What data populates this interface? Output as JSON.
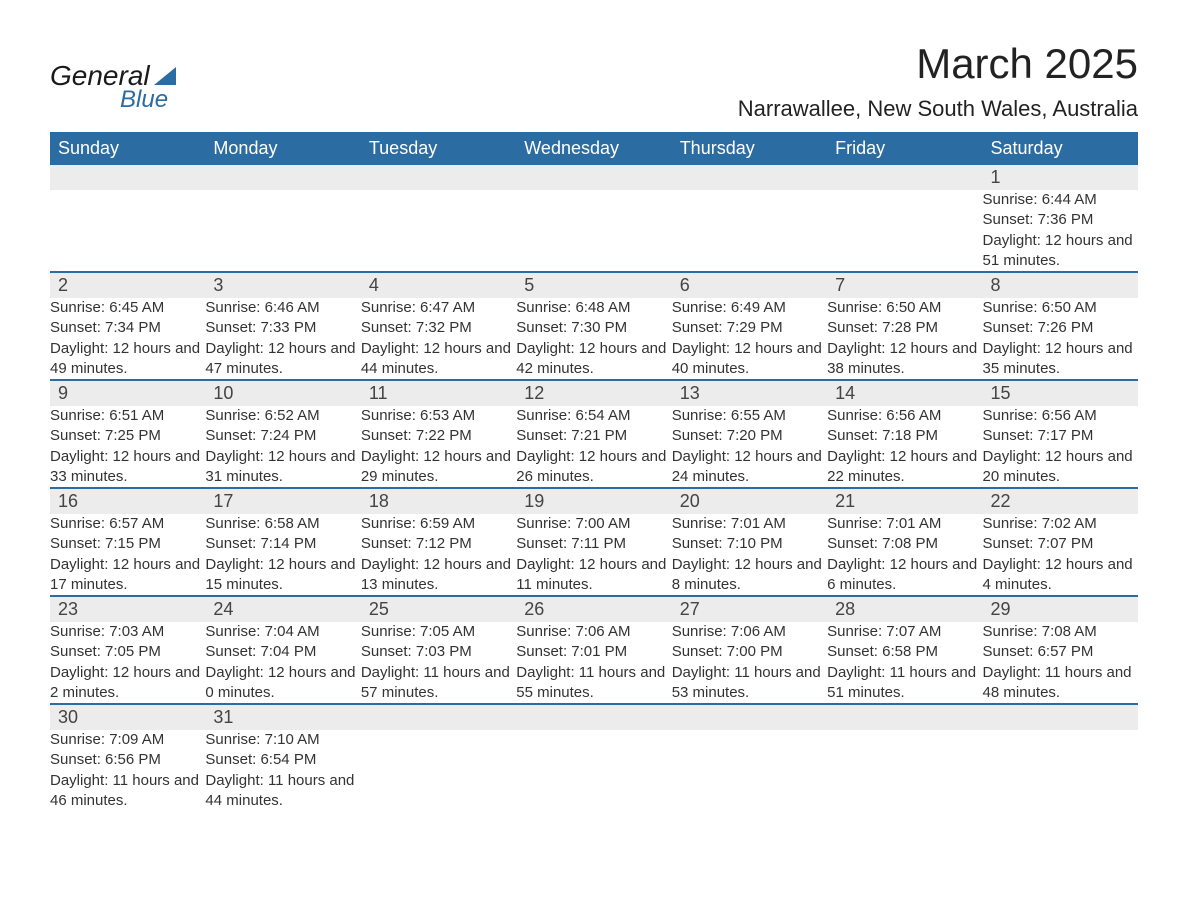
{
  "brand": {
    "part1": "General",
    "part2": "Blue"
  },
  "title": "March 2025",
  "subtitle": "Narrawallee, New South Wales, Australia",
  "colors": {
    "header_bg": "#2b6ca3",
    "header_text": "#ffffff",
    "daynum_bg": "#ececec",
    "row_border": "#2b6ca3",
    "body_bg": "#ffffff",
    "text": "#333333"
  },
  "weekdays": [
    "Sunday",
    "Monday",
    "Tuesday",
    "Wednesday",
    "Thursday",
    "Friday",
    "Saturday"
  ],
  "weeks": [
    [
      null,
      null,
      null,
      null,
      null,
      null,
      {
        "d": "1",
        "sr": "Sunrise: 6:44 AM",
        "ss": "Sunset: 7:36 PM",
        "dl": "Daylight: 12 hours and 51 minutes."
      }
    ],
    [
      {
        "d": "2",
        "sr": "Sunrise: 6:45 AM",
        "ss": "Sunset: 7:34 PM",
        "dl": "Daylight: 12 hours and 49 minutes."
      },
      {
        "d": "3",
        "sr": "Sunrise: 6:46 AM",
        "ss": "Sunset: 7:33 PM",
        "dl": "Daylight: 12 hours and 47 minutes."
      },
      {
        "d": "4",
        "sr": "Sunrise: 6:47 AM",
        "ss": "Sunset: 7:32 PM",
        "dl": "Daylight: 12 hours and 44 minutes."
      },
      {
        "d": "5",
        "sr": "Sunrise: 6:48 AM",
        "ss": "Sunset: 7:30 PM",
        "dl": "Daylight: 12 hours and 42 minutes."
      },
      {
        "d": "6",
        "sr": "Sunrise: 6:49 AM",
        "ss": "Sunset: 7:29 PM",
        "dl": "Daylight: 12 hours and 40 minutes."
      },
      {
        "d": "7",
        "sr": "Sunrise: 6:50 AM",
        "ss": "Sunset: 7:28 PM",
        "dl": "Daylight: 12 hours and 38 minutes."
      },
      {
        "d": "8",
        "sr": "Sunrise: 6:50 AM",
        "ss": "Sunset: 7:26 PM",
        "dl": "Daylight: 12 hours and 35 minutes."
      }
    ],
    [
      {
        "d": "9",
        "sr": "Sunrise: 6:51 AM",
        "ss": "Sunset: 7:25 PM",
        "dl": "Daylight: 12 hours and 33 minutes."
      },
      {
        "d": "10",
        "sr": "Sunrise: 6:52 AM",
        "ss": "Sunset: 7:24 PM",
        "dl": "Daylight: 12 hours and 31 minutes."
      },
      {
        "d": "11",
        "sr": "Sunrise: 6:53 AM",
        "ss": "Sunset: 7:22 PM",
        "dl": "Daylight: 12 hours and 29 minutes."
      },
      {
        "d": "12",
        "sr": "Sunrise: 6:54 AM",
        "ss": "Sunset: 7:21 PM",
        "dl": "Daylight: 12 hours and 26 minutes."
      },
      {
        "d": "13",
        "sr": "Sunrise: 6:55 AM",
        "ss": "Sunset: 7:20 PM",
        "dl": "Daylight: 12 hours and 24 minutes."
      },
      {
        "d": "14",
        "sr": "Sunrise: 6:56 AM",
        "ss": "Sunset: 7:18 PM",
        "dl": "Daylight: 12 hours and 22 minutes."
      },
      {
        "d": "15",
        "sr": "Sunrise: 6:56 AM",
        "ss": "Sunset: 7:17 PM",
        "dl": "Daylight: 12 hours and 20 minutes."
      }
    ],
    [
      {
        "d": "16",
        "sr": "Sunrise: 6:57 AM",
        "ss": "Sunset: 7:15 PM",
        "dl": "Daylight: 12 hours and 17 minutes."
      },
      {
        "d": "17",
        "sr": "Sunrise: 6:58 AM",
        "ss": "Sunset: 7:14 PM",
        "dl": "Daylight: 12 hours and 15 minutes."
      },
      {
        "d": "18",
        "sr": "Sunrise: 6:59 AM",
        "ss": "Sunset: 7:12 PM",
        "dl": "Daylight: 12 hours and 13 minutes."
      },
      {
        "d": "19",
        "sr": "Sunrise: 7:00 AM",
        "ss": "Sunset: 7:11 PM",
        "dl": "Daylight: 12 hours and 11 minutes."
      },
      {
        "d": "20",
        "sr": "Sunrise: 7:01 AM",
        "ss": "Sunset: 7:10 PM",
        "dl": "Daylight: 12 hours and 8 minutes."
      },
      {
        "d": "21",
        "sr": "Sunrise: 7:01 AM",
        "ss": "Sunset: 7:08 PM",
        "dl": "Daylight: 12 hours and 6 minutes."
      },
      {
        "d": "22",
        "sr": "Sunrise: 7:02 AM",
        "ss": "Sunset: 7:07 PM",
        "dl": "Daylight: 12 hours and 4 minutes."
      }
    ],
    [
      {
        "d": "23",
        "sr": "Sunrise: 7:03 AM",
        "ss": "Sunset: 7:05 PM",
        "dl": "Daylight: 12 hours and 2 minutes."
      },
      {
        "d": "24",
        "sr": "Sunrise: 7:04 AM",
        "ss": "Sunset: 7:04 PM",
        "dl": "Daylight: 12 hours and 0 minutes."
      },
      {
        "d": "25",
        "sr": "Sunrise: 7:05 AM",
        "ss": "Sunset: 7:03 PM",
        "dl": "Daylight: 11 hours and 57 minutes."
      },
      {
        "d": "26",
        "sr": "Sunrise: 7:06 AM",
        "ss": "Sunset: 7:01 PM",
        "dl": "Daylight: 11 hours and 55 minutes."
      },
      {
        "d": "27",
        "sr": "Sunrise: 7:06 AM",
        "ss": "Sunset: 7:00 PM",
        "dl": "Daylight: 11 hours and 53 minutes."
      },
      {
        "d": "28",
        "sr": "Sunrise: 7:07 AM",
        "ss": "Sunset: 6:58 PM",
        "dl": "Daylight: 11 hours and 51 minutes."
      },
      {
        "d": "29",
        "sr": "Sunrise: 7:08 AM",
        "ss": "Sunset: 6:57 PM",
        "dl": "Daylight: 11 hours and 48 minutes."
      }
    ],
    [
      {
        "d": "30",
        "sr": "Sunrise: 7:09 AM",
        "ss": "Sunset: 6:56 PM",
        "dl": "Daylight: 11 hours and 46 minutes."
      },
      {
        "d": "31",
        "sr": "Sunrise: 7:10 AM",
        "ss": "Sunset: 6:54 PM",
        "dl": "Daylight: 11 hours and 44 minutes."
      },
      null,
      null,
      null,
      null,
      null
    ]
  ]
}
